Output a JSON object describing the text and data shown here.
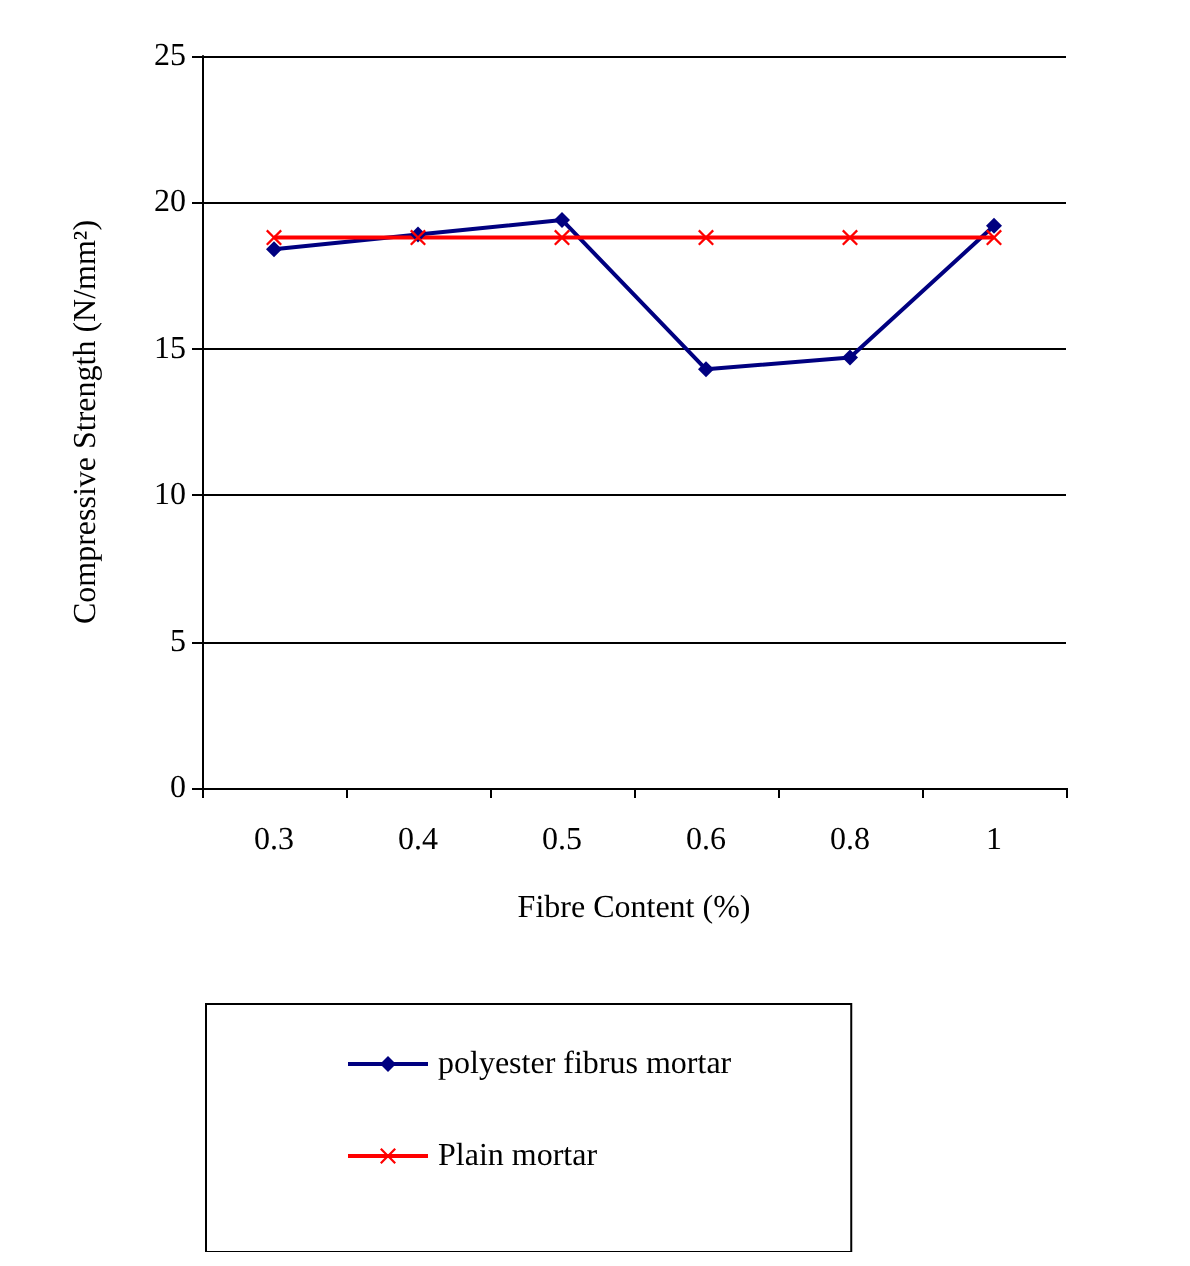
{
  "chart_data": {
    "type": "line",
    "xlabel": "Fibre Content (%)",
    "ylabel": "Compressive Strength (N/mm²)",
    "categories": [
      "0.3",
      "0.4",
      "0.5",
      "0.6",
      "0.8",
      "1"
    ],
    "series": [
      {
        "name": "polyester fibrus mortar",
        "color": "#000080",
        "marker": "diamond",
        "values": [
          18.4,
          18.9,
          19.4,
          14.3,
          14.7,
          19.2
        ]
      },
      {
        "name": "Plain mortar",
        "color": "#ff0000",
        "marker": "cross",
        "values": [
          18.8,
          18.8,
          18.8,
          18.8,
          18.8,
          18.8
        ]
      }
    ],
    "ylim": [
      0,
      25
    ],
    "yticks": [
      0,
      5,
      10,
      15,
      20,
      25
    ],
    "grid": "y",
    "legend": "bottom",
    "line_style": "solid"
  }
}
